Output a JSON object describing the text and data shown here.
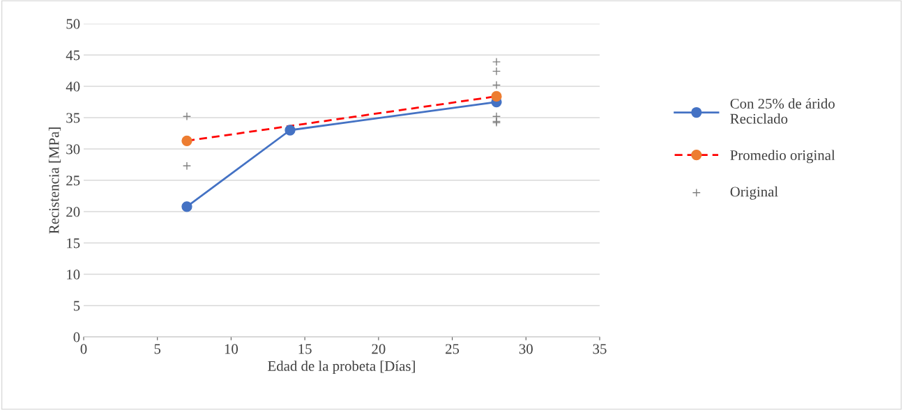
{
  "chart_data": {
    "type": "line",
    "xlabel": "Edad de la probeta [Días]",
    "ylabel": "Recistencia [MPa]",
    "xlim": [
      0,
      35
    ],
    "xticks": [
      0,
      5,
      10,
      15,
      20,
      25,
      30,
      35
    ],
    "ylim": [
      0,
      50
    ],
    "yticks": [
      0,
      5,
      10,
      15,
      20,
      25,
      30,
      35,
      40,
      45,
      50
    ],
    "grid": "y",
    "legend": "right",
    "series": [
      {
        "name": "Con 25% de árido\nReciclado",
        "color": "#4472c4",
        "line_style": "solid",
        "marker": "circle",
        "x": [
          7,
          14,
          28
        ],
        "values": [
          20.8,
          33.0,
          37.5
        ]
      },
      {
        "name": "Promedio original",
        "color": "#ff0000",
        "colors": [
          "#ed7d31",
          "#ed7d31"
        ],
        "line_style": "dashed",
        "marker": "circle",
        "x": [
          7,
          28
        ],
        "values": [
          31.3,
          38.4
        ]
      },
      {
        "name": "Original",
        "color": "#808080",
        "type": "scatter",
        "marker": "cross",
        "x": [
          7,
          7,
          28,
          28,
          28,
          28,
          28,
          28
        ],
        "values": [
          35.2,
          27.3,
          43.9,
          42.4,
          40.2,
          35.2,
          34.4,
          34.2
        ]
      }
    ]
  }
}
